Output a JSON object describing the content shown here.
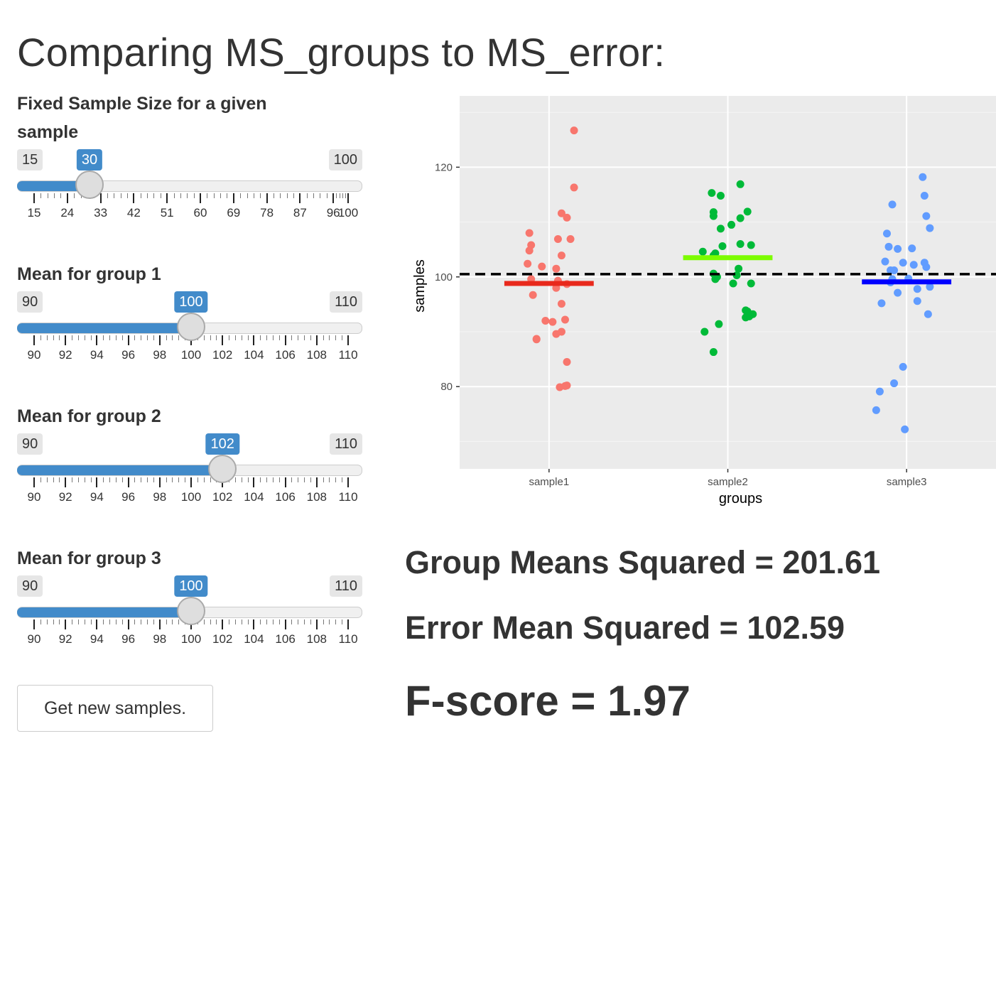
{
  "page": {
    "title": "Comparing MS_groups to MS_error:"
  },
  "controls": [
    {
      "id": "n",
      "label": "Fixed Sample Size for a given sample",
      "min": 15,
      "max": 100,
      "value": 30,
      "ticks": [
        "15",
        "24",
        "33",
        "42",
        "51",
        "60",
        "69",
        "78",
        "87",
        "96",
        "100"
      ],
      "tick_values": [
        15,
        24,
        33,
        42,
        51,
        60,
        69,
        78,
        87,
        96,
        100
      ]
    },
    {
      "id": "m1",
      "label": "Mean for group 1",
      "min": 90,
      "max": 110,
      "value": 100,
      "ticks": [
        "90",
        "92",
        "94",
        "96",
        "98",
        "100",
        "102",
        "104",
        "106",
        "108",
        "110"
      ],
      "tick_values": [
        90,
        92,
        94,
        96,
        98,
        100,
        102,
        104,
        106,
        108,
        110
      ]
    },
    {
      "id": "m2",
      "label": "Mean for group 2",
      "min": 90,
      "max": 110,
      "value": 102,
      "ticks": [
        "90",
        "92",
        "94",
        "96",
        "98",
        "100",
        "102",
        "104",
        "106",
        "108",
        "110"
      ],
      "tick_values": [
        90,
        92,
        94,
        96,
        98,
        100,
        102,
        104,
        106,
        108,
        110
      ]
    },
    {
      "id": "m3",
      "label": "Mean for group 3",
      "min": 90,
      "max": 110,
      "value": 100,
      "ticks": [
        "90",
        "92",
        "94",
        "96",
        "98",
        "100",
        "102",
        "104",
        "106",
        "108",
        "110"
      ],
      "tick_values": [
        90,
        92,
        94,
        96,
        98,
        100,
        102,
        104,
        106,
        108,
        110
      ]
    }
  ],
  "button": {
    "label": "Get new samples."
  },
  "stats": {
    "group_ms": "Group Means Squared = 201.61",
    "error_ms": "Error Mean Squared = 102.59",
    "fscore": "F-score = 1.97"
  },
  "chart_data": {
    "type": "scatter",
    "xlabel": "groups",
    "ylabel": "samples",
    "categories": [
      "sample1",
      "sample2",
      "sample3"
    ],
    "ylim": [
      65,
      133
    ],
    "yticks": [
      80,
      100,
      120
    ],
    "grand_mean": 100.5,
    "grid": true,
    "series": [
      {
        "name": "sample1",
        "color": "#F8766D",
        "mean_color": "#E8291C",
        "mean": 98.8,
        "points": [
          [
            0.14,
            126.7
          ],
          [
            0.14,
            116.3
          ],
          [
            0.07,
            111.6
          ],
          [
            0.1,
            110.8
          ],
          [
            -0.11,
            108.0
          ],
          [
            -0.1,
            105.8
          ],
          [
            -0.11,
            104.8
          ],
          [
            0.05,
            106.9
          ],
          [
            0.12,
            106.9
          ],
          [
            0.07,
            103.9
          ],
          [
            -0.12,
            102.4
          ],
          [
            -0.04,
            101.9
          ],
          [
            0.04,
            101.5
          ],
          [
            -0.1,
            99.6
          ],
          [
            0.05,
            99.3
          ],
          [
            0.1,
            98.7
          ],
          [
            0.04,
            98.0
          ],
          [
            -0.09,
            96.7
          ],
          [
            0.07,
            95.1
          ],
          [
            -0.02,
            92.0
          ],
          [
            0.02,
            91.8
          ],
          [
            0.09,
            92.2
          ],
          [
            0.07,
            90.0
          ],
          [
            0.04,
            89.6
          ],
          [
            -0.07,
            88.6
          ],
          [
            0.1,
            84.5
          ],
          [
            0.06,
            79.9
          ],
          [
            0.09,
            80.1
          ],
          [
            0.1,
            80.2
          ],
          [
            -0.07,
            88.7
          ]
        ]
      },
      {
        "name": "sample2",
        "color": "#00BA38",
        "mean_color": "#7CFC00",
        "mean": 103.5,
        "points": [
          [
            0.07,
            116.9
          ],
          [
            -0.09,
            115.3
          ],
          [
            -0.04,
            114.8
          ],
          [
            -0.08,
            111.8
          ],
          [
            0.11,
            111.9
          ],
          [
            -0.08,
            111.1
          ],
          [
            0.07,
            110.7
          ],
          [
            0.02,
            109.5
          ],
          [
            -0.04,
            108.8
          ],
          [
            0.07,
            106.0
          ],
          [
            -0.03,
            105.6
          ],
          [
            0.13,
            105.8
          ],
          [
            -0.14,
            104.6
          ],
          [
            -0.08,
            103.9
          ],
          [
            -0.07,
            104.3
          ],
          [
            0.06,
            101.5
          ],
          [
            0.05,
            100.3
          ],
          [
            -0.08,
            100.6
          ],
          [
            -0.07,
            99.6
          ],
          [
            -0.06,
            100.0
          ],
          [
            0.03,
            98.8
          ],
          [
            0.13,
            98.8
          ],
          [
            0.11,
            93.7
          ],
          [
            0.12,
            92.8
          ],
          [
            0.14,
            93.2
          ],
          [
            -0.05,
            91.4
          ],
          [
            0.1,
            92.6
          ],
          [
            -0.13,
            90.0
          ],
          [
            -0.08,
            86.3
          ],
          [
            0.1,
            93.9
          ]
        ]
      },
      {
        "name": "sample3",
        "color": "#619CFF",
        "mean_color": "#0000FF",
        "mean": 99.1,
        "points": [
          [
            0.09,
            118.2
          ],
          [
            0.1,
            114.8
          ],
          [
            -0.08,
            113.2
          ],
          [
            0.11,
            111.1
          ],
          [
            0.13,
            108.9
          ],
          [
            -0.11,
            107.9
          ],
          [
            -0.1,
            105.5
          ],
          [
            -0.05,
            105.1
          ],
          [
            0.03,
            105.2
          ],
          [
            -0.12,
            102.8
          ],
          [
            -0.02,
            102.6
          ],
          [
            0.04,
            102.2
          ],
          [
            0.1,
            102.6
          ],
          [
            0.11,
            101.8
          ],
          [
            -0.09,
            101.2
          ],
          [
            -0.07,
            101.2
          ],
          [
            -0.08,
            99.6
          ],
          [
            0.01,
            99.7
          ],
          [
            -0.09,
            99.0
          ],
          [
            0.13,
            98.2
          ],
          [
            0.06,
            97.8
          ],
          [
            -0.05,
            97.1
          ],
          [
            -0.14,
            95.2
          ],
          [
            0.06,
            95.6
          ],
          [
            0.12,
            93.2
          ],
          [
            -0.02,
            83.6
          ],
          [
            -0.07,
            80.6
          ],
          [
            -0.15,
            79.1
          ],
          [
            -0.17,
            75.7
          ],
          [
            -0.01,
            72.2
          ]
        ]
      }
    ]
  }
}
